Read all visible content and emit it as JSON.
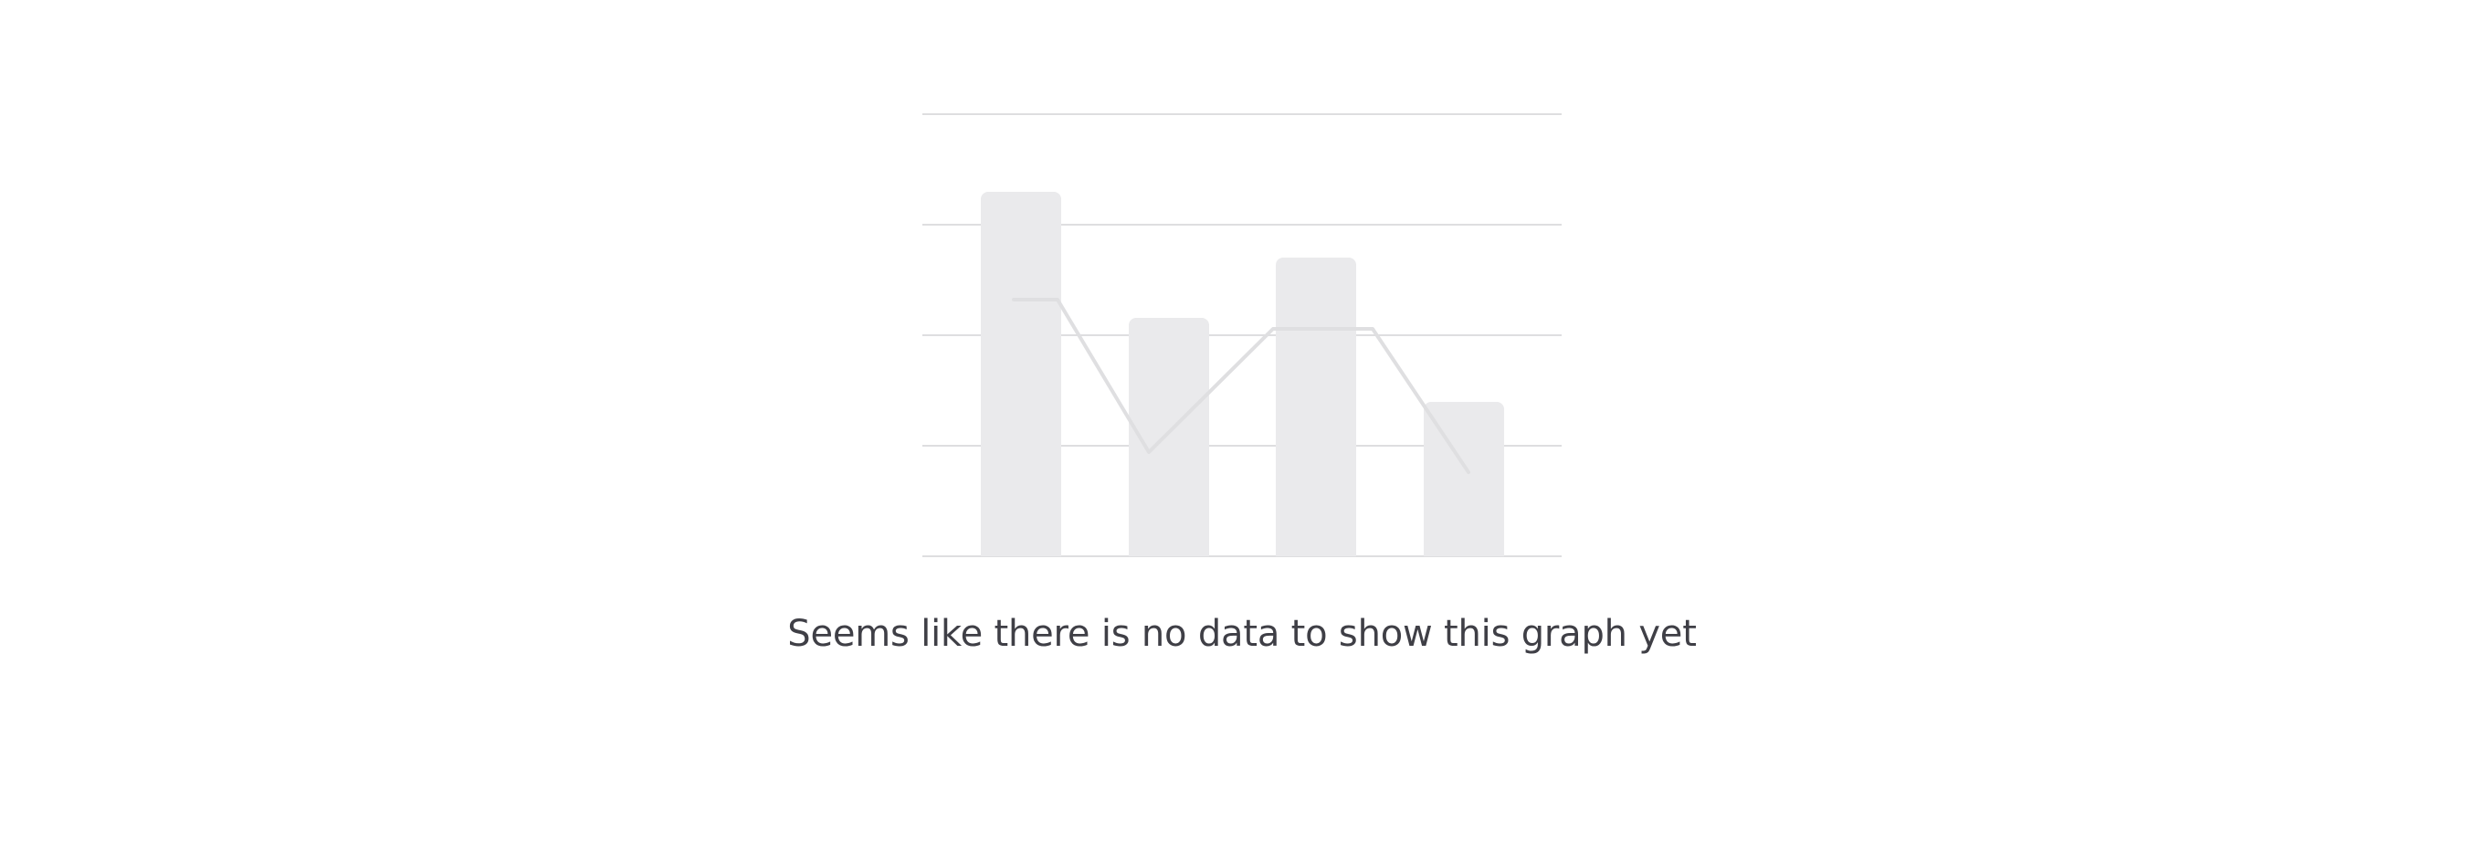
{
  "empty_state": {
    "message": "Seems like there is no data to show this graph yet",
    "illustration": {
      "name": "placeholder-bar-line-chart",
      "bar_color": "#eaeaec",
      "grid_color": "#dedee0",
      "line_color": "#dfdfe1"
    }
  }
}
